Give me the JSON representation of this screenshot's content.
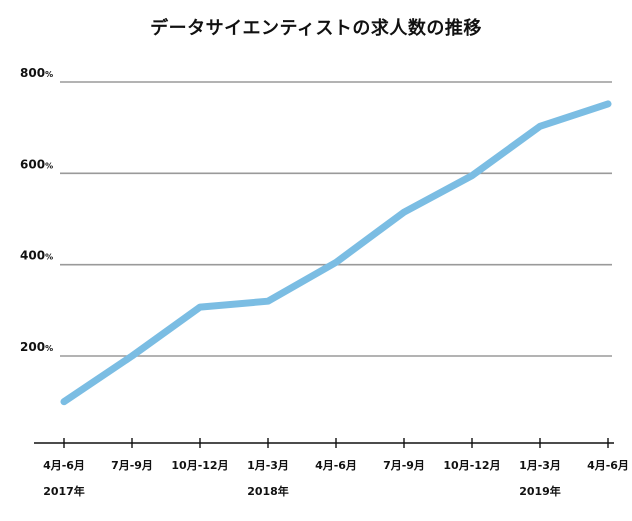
{
  "chart_data": {
    "type": "line",
    "title": "データサイエンティストの求人数の推移",
    "y_unit": "%",
    "yticks": [
      200,
      400,
      600,
      800
    ],
    "ylim": [
      0,
      800
    ],
    "grid": true,
    "categories": [
      "4月-6月",
      "7月-9月",
      "10月-12月",
      "1月-3月",
      "4月-6月",
      "7月-9月",
      "10月-12月",
      "1月-3月",
      "4月-6月"
    ],
    "year_labels": [
      {
        "index": 0,
        "label": "2017年"
      },
      {
        "index": 3,
        "label": "2018年"
      },
      {
        "index": 7,
        "label": "2019年"
      }
    ],
    "series": [
      {
        "values": [
          100,
          200,
          307,
          320,
          405,
          515,
          595,
          703,
          752
        ],
        "color": "#7bbde3"
      }
    ]
  }
}
